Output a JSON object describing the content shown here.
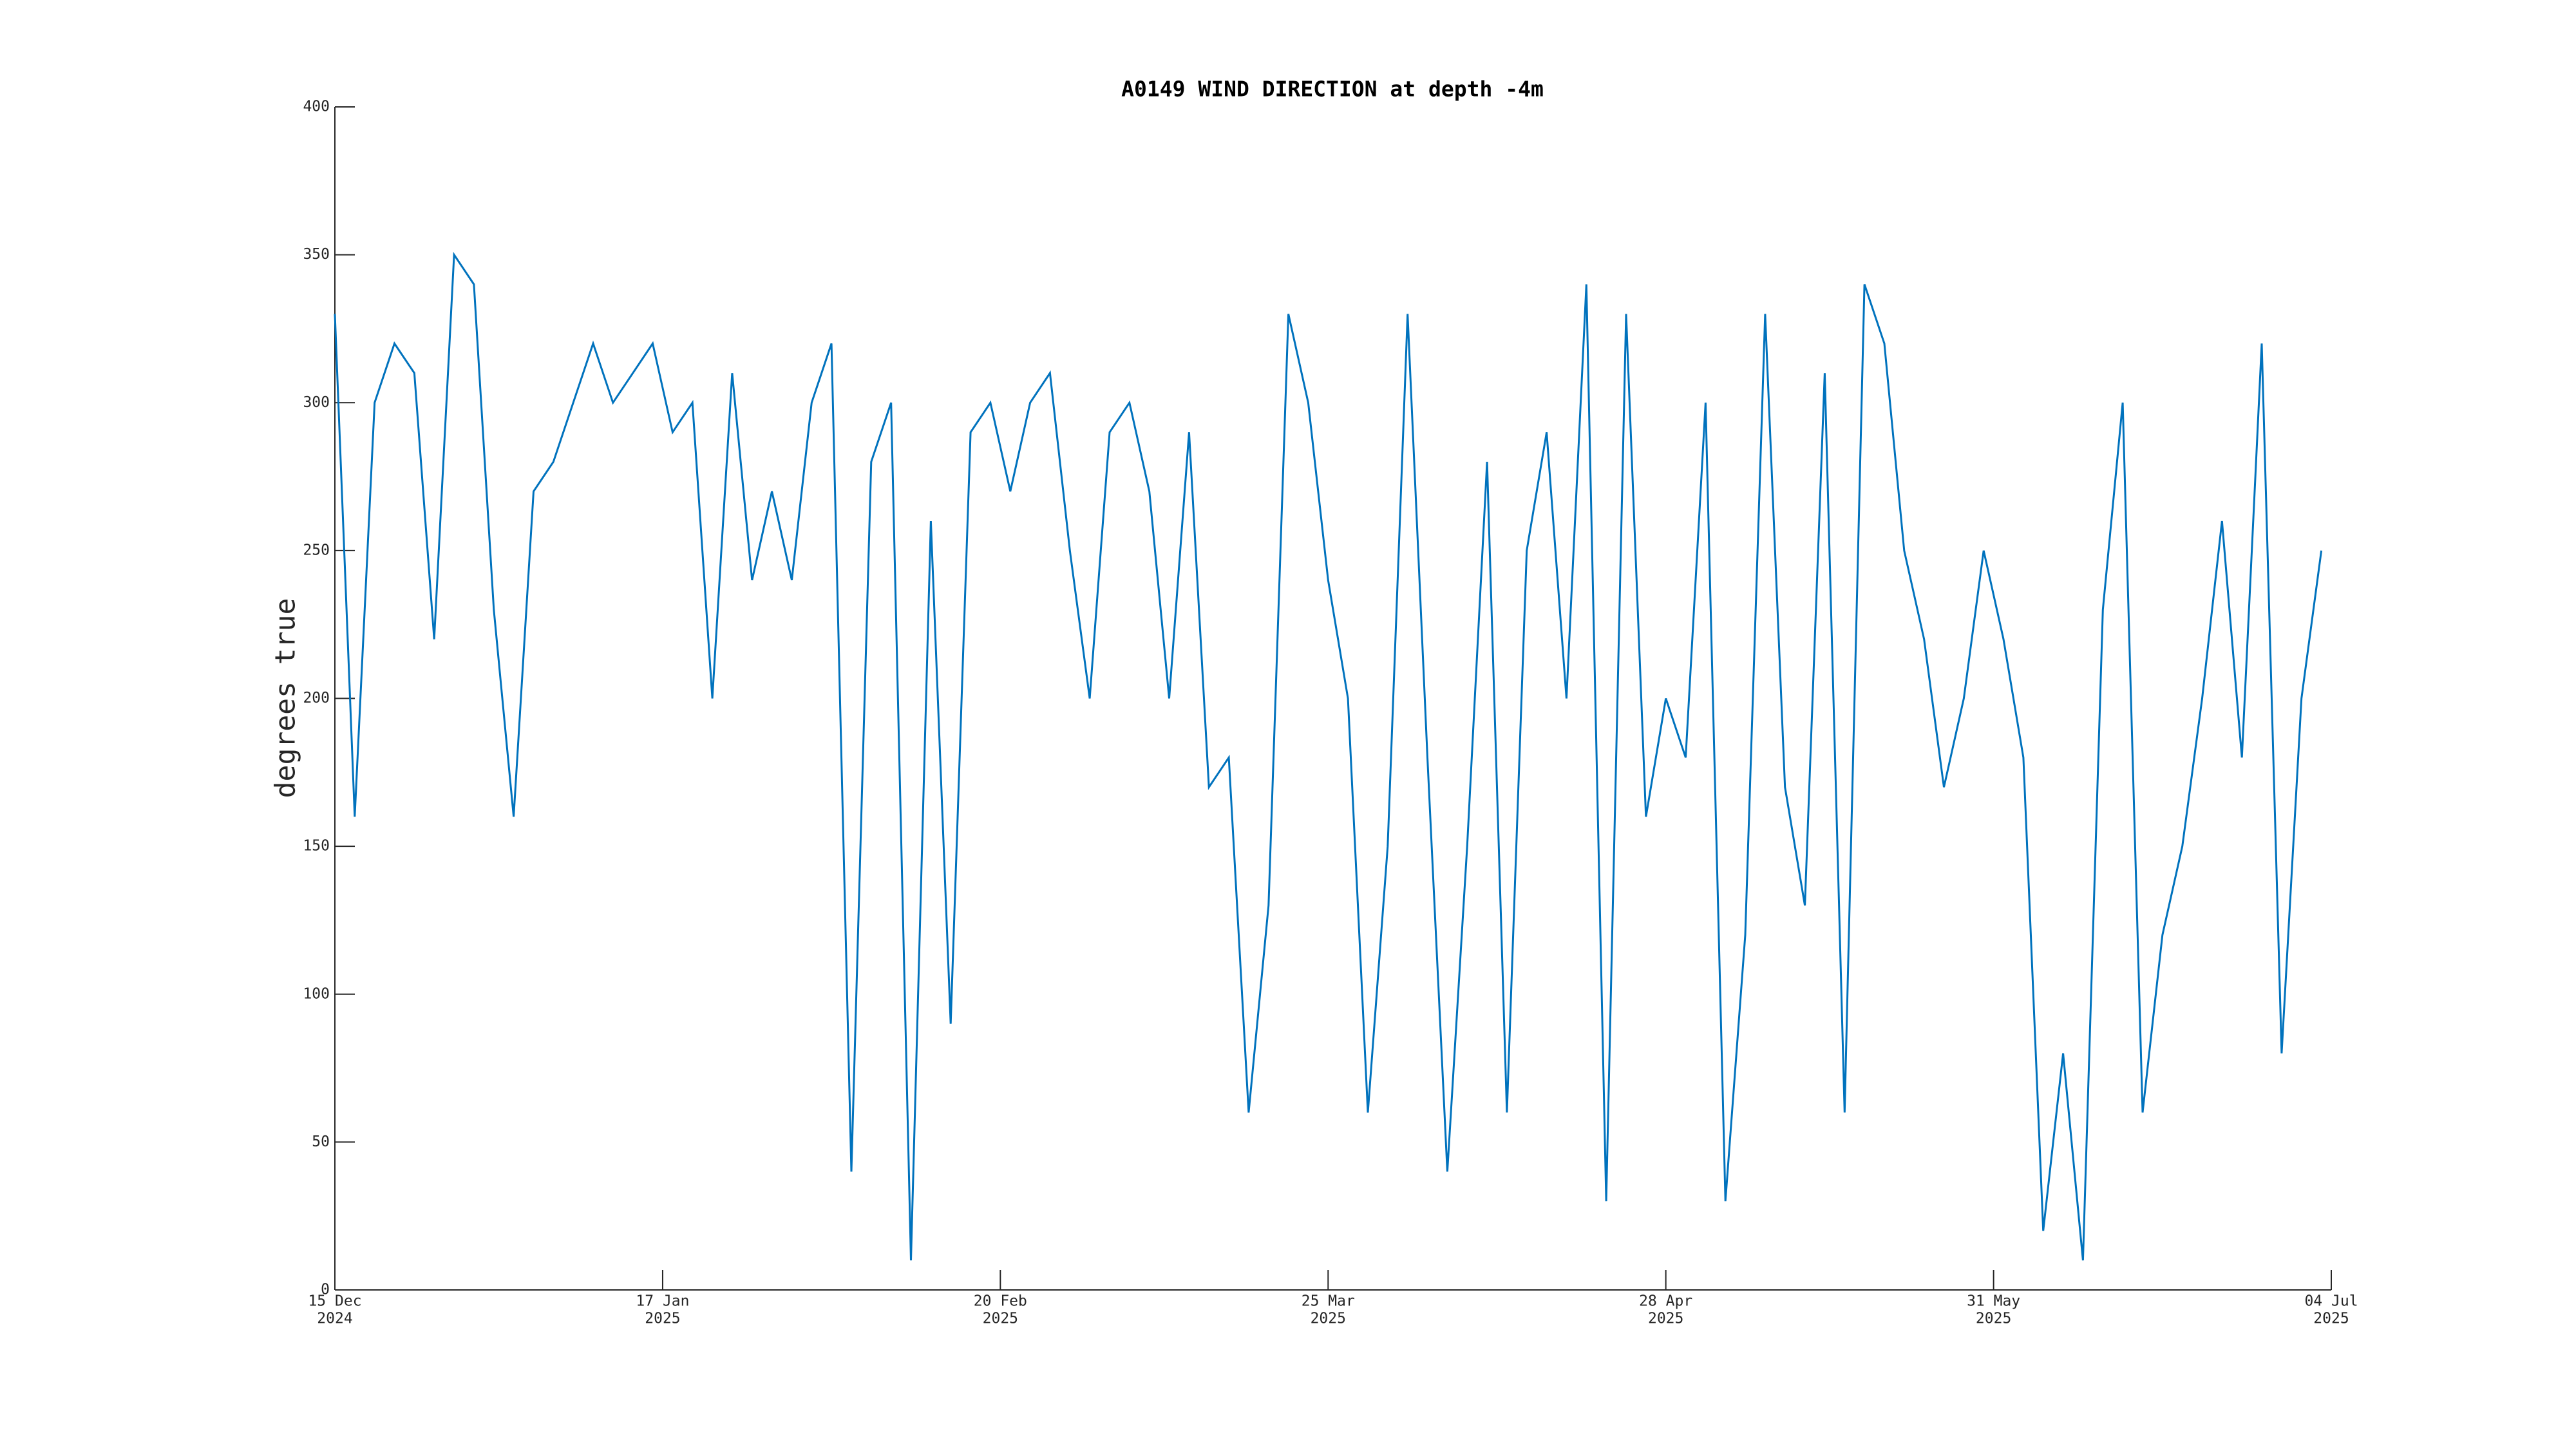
{
  "chart_data": {
    "type": "line",
    "title": "A0149 WIND DIRECTION at depth -4m",
    "y_label": "degrees true",
    "color": "#0072bd",
    "x": [
      "2024-12-15",
      "2024-12-17",
      "2024-12-19",
      "2024-12-21",
      "2024-12-23",
      "2024-12-25",
      "2024-12-27",
      "2024-12-29",
      "2024-12-31",
      "2025-01-02",
      "2025-01-04",
      "2025-01-06",
      "2025-01-08",
      "2025-01-10",
      "2025-01-12",
      "2025-01-14",
      "2025-01-16",
      "2025-01-18",
      "2025-01-20",
      "2025-01-22",
      "2025-01-24",
      "2025-01-26",
      "2025-01-28",
      "2025-01-30",
      "2025-02-01",
      "2025-02-03",
      "2025-02-05",
      "2025-02-07",
      "2025-02-09",
      "2025-02-11",
      "2025-02-13",
      "2025-02-15",
      "2025-02-17",
      "2025-02-19",
      "2025-02-21",
      "2025-02-23",
      "2025-02-25",
      "2025-02-27",
      "2025-03-01",
      "2025-03-03",
      "2025-03-05",
      "2025-03-07",
      "2025-03-09",
      "2025-03-11",
      "2025-03-13",
      "2025-03-15",
      "2025-03-17",
      "2025-03-19",
      "2025-03-21",
      "2025-03-23",
      "2025-03-25",
      "2025-03-27",
      "2025-03-29",
      "2025-03-31",
      "2025-04-02",
      "2025-04-04",
      "2025-04-06",
      "2025-04-08",
      "2025-04-10",
      "2025-04-12",
      "2025-04-14",
      "2025-04-16",
      "2025-04-18",
      "2025-04-20",
      "2025-04-22",
      "2025-04-24",
      "2025-04-26",
      "2025-04-28",
      "2025-04-30",
      "2025-05-02",
      "2025-05-04",
      "2025-05-06",
      "2025-05-08",
      "2025-05-10",
      "2025-05-12",
      "2025-05-14",
      "2025-05-16",
      "2025-05-18",
      "2025-05-20",
      "2025-05-22",
      "2025-05-24",
      "2025-05-26",
      "2025-05-28",
      "2025-05-30",
      "2025-06-01",
      "2025-06-03",
      "2025-06-05",
      "2025-06-07",
      "2025-06-09",
      "2025-06-11",
      "2025-06-13",
      "2025-06-15",
      "2025-06-17",
      "2025-06-19",
      "2025-06-21",
      "2025-06-23",
      "2025-06-25",
      "2025-06-27",
      "2025-06-29",
      "2025-07-01",
      "2025-07-03"
    ],
    "values": [
      330,
      160,
      300,
      320,
      310,
      220,
      350,
      340,
      230,
      160,
      270,
      280,
      300,
      320,
      300,
      310,
      320,
      290,
      300,
      200,
      310,
      240,
      270,
      240,
      300,
      320,
      40,
      280,
      300,
      10,
      260,
      90,
      290,
      300,
      270,
      300,
      310,
      250,
      200,
      290,
      300,
      270,
      200,
      290,
      170,
      180,
      60,
      130,
      330,
      300,
      240,
      200,
      60,
      150,
      330,
      180,
      40,
      150,
      280,
      60,
      250,
      290,
      200,
      340,
      30,
      330,
      160,
      200,
      180,
      300,
      30,
      120,
      330,
      170,
      130,
      310,
      60,
      340,
      320,
      250,
      220,
      170,
      200,
      250,
      220,
      180,
      20,
      80,
      10,
      230,
      300,
      60,
      120,
      150,
      200,
      260,
      180,
      320,
      80,
      200,
      250
    ],
    "xlim": [
      "2024-12-15",
      "2025-07-04"
    ],
    "xticks": [
      {
        "value": "2024-12-15",
        "label": [
          "15 Dec",
          "2024"
        ]
      },
      {
        "value": "2025-01-17",
        "label": [
          "17 Jan",
          "2025"
        ]
      },
      {
        "value": "2025-02-20",
        "label": [
          "20 Feb",
          "2025"
        ]
      },
      {
        "value": "2025-03-25",
        "label": [
          "25 Mar",
          "2025"
        ]
      },
      {
        "value": "2025-04-28",
        "label": [
          "28 Apr",
          "2025"
        ]
      },
      {
        "value": "2025-05-31",
        "label": [
          "31 May",
          "2025"
        ]
      },
      {
        "value": "2025-07-04",
        "label": [
          "04 Jul",
          "2025"
        ]
      }
    ],
    "ylim": [
      0,
      400
    ],
    "yticks": [
      0,
      50,
      100,
      150,
      200,
      250,
      300,
      350,
      400
    ],
    "grid": false
  }
}
